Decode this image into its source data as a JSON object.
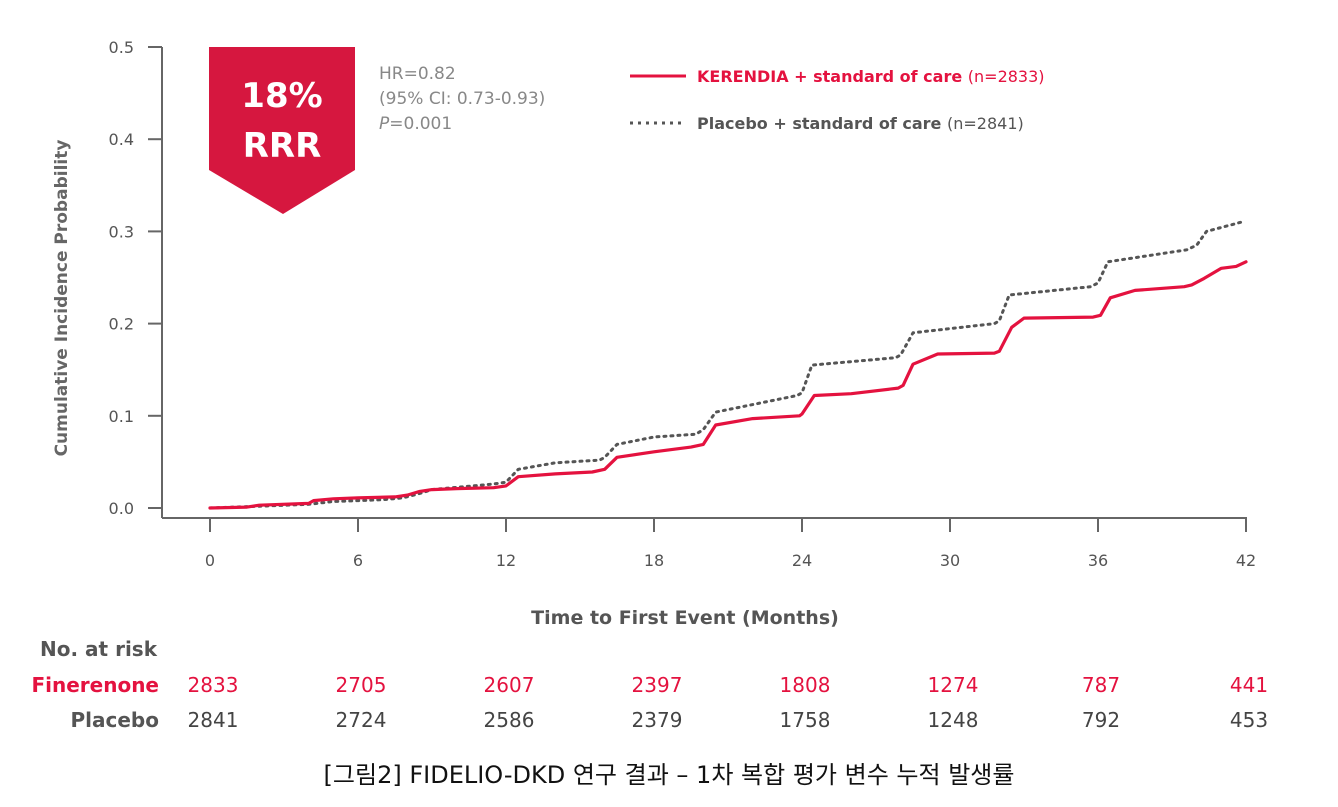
{
  "chart_data": {
    "type": "line",
    "xlabel": "Time to First Event (Months)",
    "ylabel": "Cumulative Incidence Probability",
    "xlim": [
      0,
      42
    ],
    "ylim": [
      0,
      0.5
    ],
    "xticks": [
      0,
      6,
      12,
      18,
      24,
      30,
      36,
      42
    ],
    "yticks": [
      "0.0",
      "0.1",
      "0.2",
      "0.3",
      "0.4",
      "0.5"
    ],
    "grid": false,
    "legend_position": "top-right",
    "badge": {
      "line1": "18%",
      "line2": "RRR"
    },
    "stats": {
      "hr": "HR=0.82",
      "ci": "(95% CI: 0.73-0.93)",
      "p_letter": "P",
      "p_value": "=0.001"
    },
    "series": [
      {
        "name": "KERENDIA + standard of care",
        "n": "(n=2833)",
        "color": "#e4123f",
        "style": "solid",
        "x": [
          0,
          1.5,
          2,
          4,
          4.2,
          5,
          6,
          7.5,
          8,
          8.5,
          9,
          10,
          11.5,
          12,
          12.5,
          14,
          15.5,
          16,
          16.5,
          18,
          19.5,
          20,
          20.5,
          22,
          23.9,
          24,
          24.5,
          26,
          27.9,
          28.1,
          28.5,
          29.5,
          31.8,
          32,
          32.5,
          33,
          35.8,
          36.1,
          36.5,
          37.5,
          39.5,
          39.8,
          40.3,
          41,
          41.6,
          42
        ],
        "y": [
          0,
          0.001,
          0.003,
          0.005,
          0.008,
          0.01,
          0.011,
          0.012,
          0.014,
          0.018,
          0.02,
          0.021,
          0.022,
          0.024,
          0.034,
          0.037,
          0.039,
          0.042,
          0.055,
          0.061,
          0.066,
          0.069,
          0.09,
          0.097,
          0.1,
          0.102,
          0.122,
          0.124,
          0.13,
          0.133,
          0.156,
          0.167,
          0.168,
          0.17,
          0.196,
          0.206,
          0.207,
          0.209,
          0.228,
          0.236,
          0.24,
          0.242,
          0.249,
          0.26,
          0.262,
          0.267
        ]
      },
      {
        "name": "Placebo + standard of care",
        "n": "(n=2841)",
        "color": "#555555",
        "style": "dotted",
        "x": [
          0,
          2,
          4,
          5,
          7,
          7.8,
          8.4,
          9,
          11.5,
          12,
          12.5,
          14,
          15.8,
          16,
          16.5,
          18,
          19.7,
          20,
          20.5,
          23.8,
          24,
          24.4,
          27.8,
          28,
          28.5,
          31.8,
          32,
          32.4,
          35.7,
          36,
          36.4,
          39.6,
          40,
          40.4,
          41.8
        ],
        "y": [
          0,
          0.002,
          0.004,
          0.007,
          0.009,
          0.011,
          0.015,
          0.02,
          0.026,
          0.028,
          0.042,
          0.049,
          0.052,
          0.055,
          0.069,
          0.077,
          0.08,
          0.085,
          0.104,
          0.122,
          0.125,
          0.155,
          0.163,
          0.166,
          0.19,
          0.2,
          0.203,
          0.231,
          0.24,
          0.244,
          0.267,
          0.28,
          0.285,
          0.3,
          0.31
        ]
      }
    ],
    "risk_table": {
      "header": "No. at risk",
      "rows": [
        {
          "label": "Finerenone",
          "color": "#e4123f",
          "values": [
            "2833",
            "2705",
            "2607",
            "2397",
            "1808",
            "1274",
            "787",
            "441"
          ]
        },
        {
          "label": "Placebo",
          "color": "#444444",
          "values": [
            "2841",
            "2724",
            "2586",
            "2379",
            "1758",
            "1248",
            "792",
            "453"
          ]
        }
      ]
    }
  },
  "caption": "[그림2] FIDELIO-DKD 연구 결과 – 1차 복합 평가 변수 누적 발생률",
  "colors": {
    "accent": "#e4123f",
    "placebo": "#555555",
    "axis": "#666666"
  }
}
